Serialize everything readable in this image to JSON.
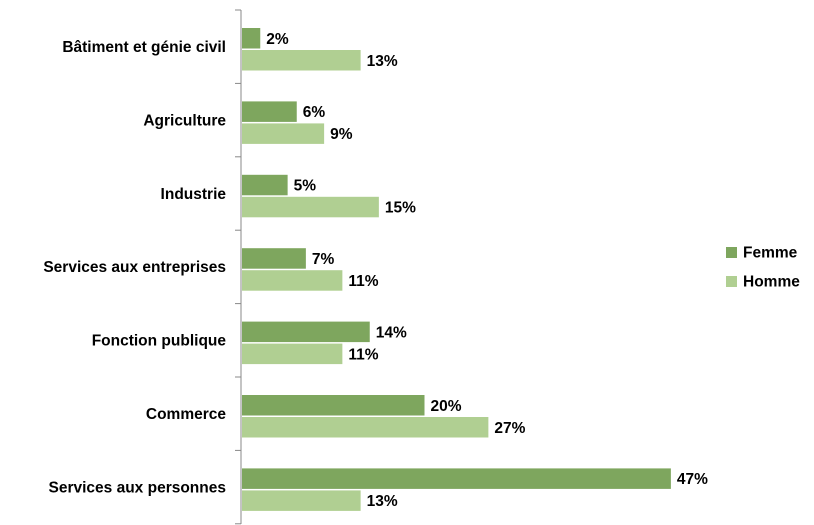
{
  "chart_data": {
    "type": "bar",
    "orientation": "horizontal",
    "categories": [
      "Bâtiment et génie civil",
      "Agriculture",
      "Industrie",
      "Services aux entreprises",
      "Fonction publique",
      "Commerce",
      "Services aux personnes"
    ],
    "series": [
      {
        "name": "Femme",
        "color": "#7ea65e",
        "values": [
          2,
          6,
          5,
          7,
          14,
          20,
          47
        ]
      },
      {
        "name": "Homme",
        "color": "#b0cf92",
        "values": [
          13,
          9,
          15,
          11,
          11,
          27,
          13
        ]
      }
    ],
    "value_suffix": "%",
    "title": "",
    "xlabel": "",
    "ylabel": "",
    "xlim": [
      0,
      50
    ],
    "grid": false,
    "legend_position": "right"
  }
}
